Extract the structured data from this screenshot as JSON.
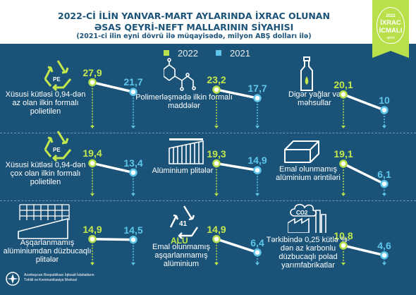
{
  "title": {
    "line1": "2022-Cİ İLİN YANVAR-MART AYLARINDA İXRAC OLUNAN",
    "line2": "ƏSAS QEYRİ-NEFT MALLARININ SİYAHISI",
    "line3": "(2021-ci ilin eyni dövrü ilə müqayisədə, milyon ABŞ dolları ilə)"
  },
  "badge": {
    "year": "2022",
    "line1": "İXRAC",
    "line2": "İCMALI",
    "sub": "aprel"
  },
  "legend": [
    {
      "label": "2022",
      "color": "#b8e04a"
    },
    {
      "label": "2021",
      "color": "#5ec6ea"
    }
  ],
  "colors": {
    "background": "#1b5378",
    "y2022": "#b8e04a",
    "y2021": "#5ec6ea"
  },
  "icon_labels": {
    "pe1": "PE",
    "pe2": "PE",
    "alu": "ALU",
    "alu_num": "41",
    "co2": "CO2"
  },
  "chart_data": {
    "type": "slope",
    "series_names": [
      "2022",
      "2021"
    ],
    "items": [
      {
        "label": "Xüsusi kütləsi 0,94-dən az olan ilkin formalı polietilen",
        "icon": "recycle-pe-icon",
        "values": [
          27.9,
          21.7
        ],
        "v2022_text": "27,9",
        "v2021_text": "21,7"
      },
      {
        "label": "Polimerləşmədə ilkin formalı maddələr",
        "icon": "molecule-icon",
        "values": [
          23.2,
          17.7
        ],
        "v2022_text": "23,2",
        "v2021_text": "17,7"
      },
      {
        "label": "Digər yağlar və məhsullar",
        "icon": "oil-bottle-icon",
        "values": [
          20.1,
          10.0
        ],
        "v2022_text": "20,1",
        "v2021_text": "10"
      },
      {
        "label": "Xüsusi kütləsi 0,94-dən çox olan ilkin formalı polietilen",
        "icon": "recycle-pe-icon",
        "values": [
          19.4,
          13.4
        ],
        "v2022_text": "19,4",
        "v2021_text": "13,4"
      },
      {
        "label": "Alüminium plitələr",
        "icon": "aluminium-plate-icon",
        "values": [
          19.3,
          14.9
        ],
        "v2022_text": "19,3",
        "v2021_text": "14,9"
      },
      {
        "label": "Emal olunmamış alüminium ərintiləri",
        "icon": "ingot-icon",
        "values": [
          19.1,
          6.1
        ],
        "v2022_text": "19,1",
        "v2021_text": "6,1"
      },
      {
        "label": "Aşqarlanmamış alüminiumdan düzbucaqlı plitələr",
        "icon": "grid-plate-icon",
        "values": [
          14.9,
          14.5
        ],
        "v2022_text": "14,9",
        "v2021_text": "14,5"
      },
      {
        "label": "Emal olunmamış aşqarlanmamış alüminium",
        "icon": "alu-recycle-icon",
        "values": [
          14.9,
          6.4
        ],
        "v2022_text": "14,9",
        "v2021_text": "6,4"
      },
      {
        "label": "Tərkibində 0,25 kütlə %-dən az karbonlu düzbucaqlı polad yarımfabrikatlar",
        "icon": "co2-factory-icon",
        "values": [
          10.8,
          4.6
        ],
        "v2022_text": "10,8",
        "v2021_text": "4,6"
      }
    ]
  },
  "footer": {
    "org1": "Azərbaycan Respublikası İqtisadi İslahatların",
    "org2": "Təhlili və Kommunikasiya Mərkəzi"
  }
}
